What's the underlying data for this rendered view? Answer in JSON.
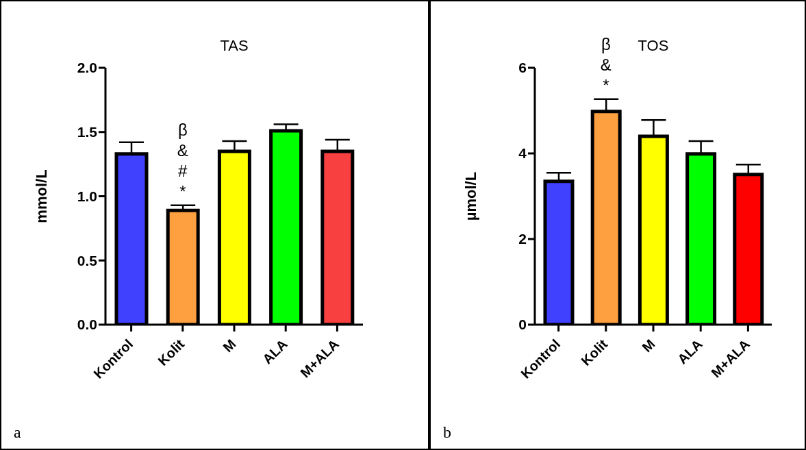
{
  "chart_data": [
    {
      "type": "bar",
      "title": "TAS",
      "ylabel": "mmol/L",
      "categories": [
        "Kontrol",
        "Kolit",
        "M",
        "ALA",
        "M+ALA"
      ],
      "values": [
        1.33,
        0.89,
        1.35,
        1.51,
        1.35
      ],
      "errors": [
        0.09,
        0.04,
        0.08,
        0.05,
        0.09
      ],
      "colors": [
        "#4040ff",
        "#ffa040",
        "#ffff00",
        "#00ff00",
        "#f84040"
      ],
      "ylim": [
        0,
        2
      ],
      "yticks": [
        {
          "value": 0,
          "label": "0.0"
        },
        {
          "value": 0.5,
          "label": "0.5"
        },
        {
          "value": 1,
          "label": "1.0"
        },
        {
          "value": 1.5,
          "label": "1.5"
        },
        {
          "value": 2,
          "label": "2.0"
        }
      ],
      "annotations": [
        {
          "text": "β\n&\n#\n*",
          "x": "Kolit",
          "y": 0.89
        },
        "a"
      ]
    },
    {
      "type": "bar",
      "title": "TOS",
      "ylabel": "µmol/L",
      "categories": [
        "Kontrol",
        "Kolit",
        "M",
        "ALA",
        "M+ALA"
      ],
      "values": [
        3.35,
        4.98,
        4.4,
        3.99,
        3.51
      ],
      "errors": [
        0.2,
        0.29,
        0.38,
        0.3,
        0.23
      ],
      "colors": [
        "#4040ff",
        "#ffa040",
        "#ffff00",
        "#00ff00",
        "#ff0000"
      ],
      "ylim": [
        0,
        6
      ],
      "yticks": [
        0,
        2,
        4,
        6
      ],
      "annotations": [
        {
          "text": "β\n&\n*",
          "x": "Kolit",
          "y": 4.98
        },
        "b"
      ]
    }
  ]
}
